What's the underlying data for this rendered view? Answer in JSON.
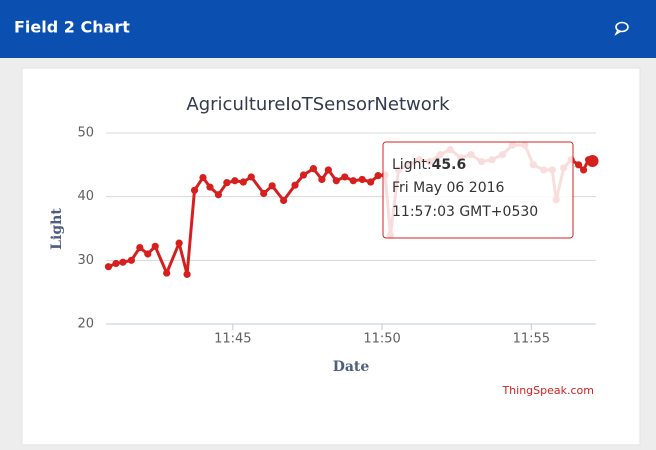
{
  "header": {
    "title": "Field 2 Chart"
  },
  "chart_data": {
    "type": "line",
    "title": "AgricultureIoTSensorNetwork",
    "x_label": "Date",
    "y_label": "Light",
    "credits": "ThingSpeak.com",
    "x": [
      "11:40:50",
      "11:41:05",
      "11:41:19",
      "11:41:36",
      "11:41:53",
      "11:42:09",
      "11:42:24",
      "11:42:47",
      "11:43:12",
      "11:43:28",
      "11:43:43",
      "11:44:00",
      "11:44:14",
      "11:44:31",
      "11:44:48",
      "11:45:04",
      "11:45:21",
      "11:45:37",
      "11:46:02",
      "11:46:19",
      "11:46:42",
      "11:47:05",
      "11:47:22",
      "11:47:42",
      "11:47:59",
      "11:48:12",
      "11:48:28",
      "11:48:45",
      "11:49:02",
      "11:49:20",
      "11:49:37",
      "11:49:52",
      "11:50:06",
      "11:50:17",
      "11:50:33",
      "11:50:54",
      "11:51:15",
      "11:51:36",
      "11:51:57",
      "11:52:17",
      "11:52:38",
      "11:52:59",
      "11:53:20",
      "11:53:41",
      "11:54:02",
      "11:54:22",
      "11:54:47",
      "11:55:04",
      "11:55:25",
      "11:55:42",
      "11:55:50",
      "11:56:05",
      "11:56:20",
      "11:56:35",
      "11:56:45",
      "11:56:55",
      "11:57:03"
    ],
    "series": [
      {
        "name": "Light",
        "color": "#d62020",
        "values": [
          29.0,
          29.5,
          29.7,
          30.0,
          32.0,
          31.0,
          32.2,
          28.0,
          32.7,
          27.8,
          41.0,
          43.0,
          41.5,
          40.3,
          42.2,
          42.5,
          42.3,
          43.1,
          40.5,
          41.7,
          39.4,
          41.8,
          43.4,
          44.4,
          42.7,
          44.2,
          42.5,
          43.1,
          42.5,
          42.7,
          42.3,
          43.3,
          43.4,
          34.0,
          44.2,
          45.0,
          45.8,
          45.5,
          46.6,
          47.4,
          46.1,
          46.6,
          45.5,
          45.8,
          46.6,
          48.1,
          48.1,
          45.0,
          44.2,
          44.2,
          39.5,
          44.5,
          45.8,
          45.0,
          44.2,
          45.8,
          45.6
        ]
      }
    ],
    "xlim": [
      "11:40:45",
      "11:57:10"
    ],
    "xticks": [
      "11:45",
      "11:50",
      "11:55"
    ],
    "ylim": [
      20,
      50
    ],
    "yticks": [
      20,
      30,
      40,
      50
    ],
    "grid": true,
    "tooltip": {
      "prefix": "Light:",
      "date": "Fri May 06 2016",
      "time": "11:57:03 GMT+0530"
    }
  }
}
